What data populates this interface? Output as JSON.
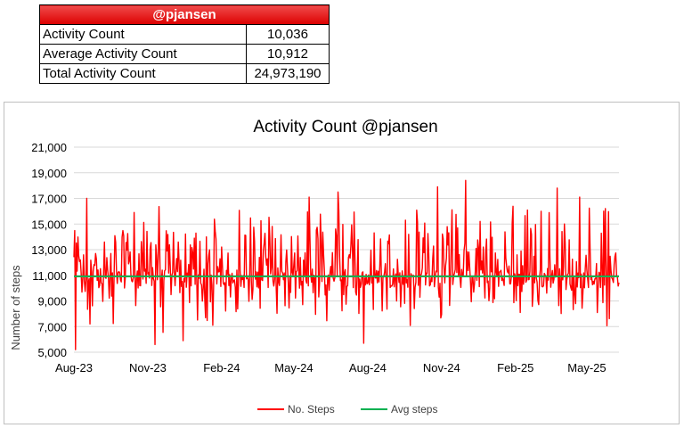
{
  "summary": {
    "header": "@pjansen",
    "rows": [
      {
        "label": "Activity Count",
        "value": "10,036"
      },
      {
        "label": "Average Activity Count",
        "value": "10,912"
      },
      {
        "label": "Total Activity Count",
        "value": "24,973,190"
      }
    ],
    "header_color": "#e02020"
  },
  "chart_data": {
    "type": "line",
    "title": "Activity Count @pjansen",
    "xlabel": "",
    "ylabel": "Number of steps",
    "ylim": [
      5000,
      21000
    ],
    "y_ticks": [
      "5,000",
      "7,000",
      "9,000",
      "11,000",
      "13,000",
      "15,000",
      "17,000",
      "19,000",
      "21,000"
    ],
    "x_ticks": [
      "Aug-23",
      "Nov-23",
      "Feb-24",
      "May-24",
      "Aug-24",
      "Nov-24",
      "Feb-25",
      "May-25"
    ],
    "x_range": [
      "2023-08-01",
      "2025-06-10"
    ],
    "grid": true,
    "legend_position": "bottom",
    "series": [
      {
        "name": "No. Steps",
        "color": "#ff0000",
        "approx_mean": 10912,
        "approx_min": 5200,
        "approx_max": 18500,
        "notable_peaks": [
          {
            "x": "2023-08-03",
            "y": 5200
          },
          {
            "x": "2023-08-17",
            "y": 17000
          },
          {
            "x": "2023-11-10",
            "y": 5600
          },
          {
            "x": "2023-12-15",
            "y": 5900
          },
          {
            "x": "2024-05-20",
            "y": 17100
          },
          {
            "x": "2024-06-25",
            "y": 17500
          },
          {
            "x": "2024-07-27",
            "y": 5700
          },
          {
            "x": "2024-10-27",
            "y": 17900
          },
          {
            "x": "2024-12-01",
            "y": 18400
          },
          {
            "x": "2025-03-25",
            "y": 17800
          },
          {
            "x": "2025-04-22",
            "y": 17100
          },
          {
            "x": "2025-05-22",
            "y": 16000
          }
        ]
      },
      {
        "name": "Avg steps",
        "color": "#00b050",
        "values": [
          10912,
          10912
        ],
        "x": [
          "2023-08-01",
          "2025-06-10"
        ]
      }
    ]
  }
}
